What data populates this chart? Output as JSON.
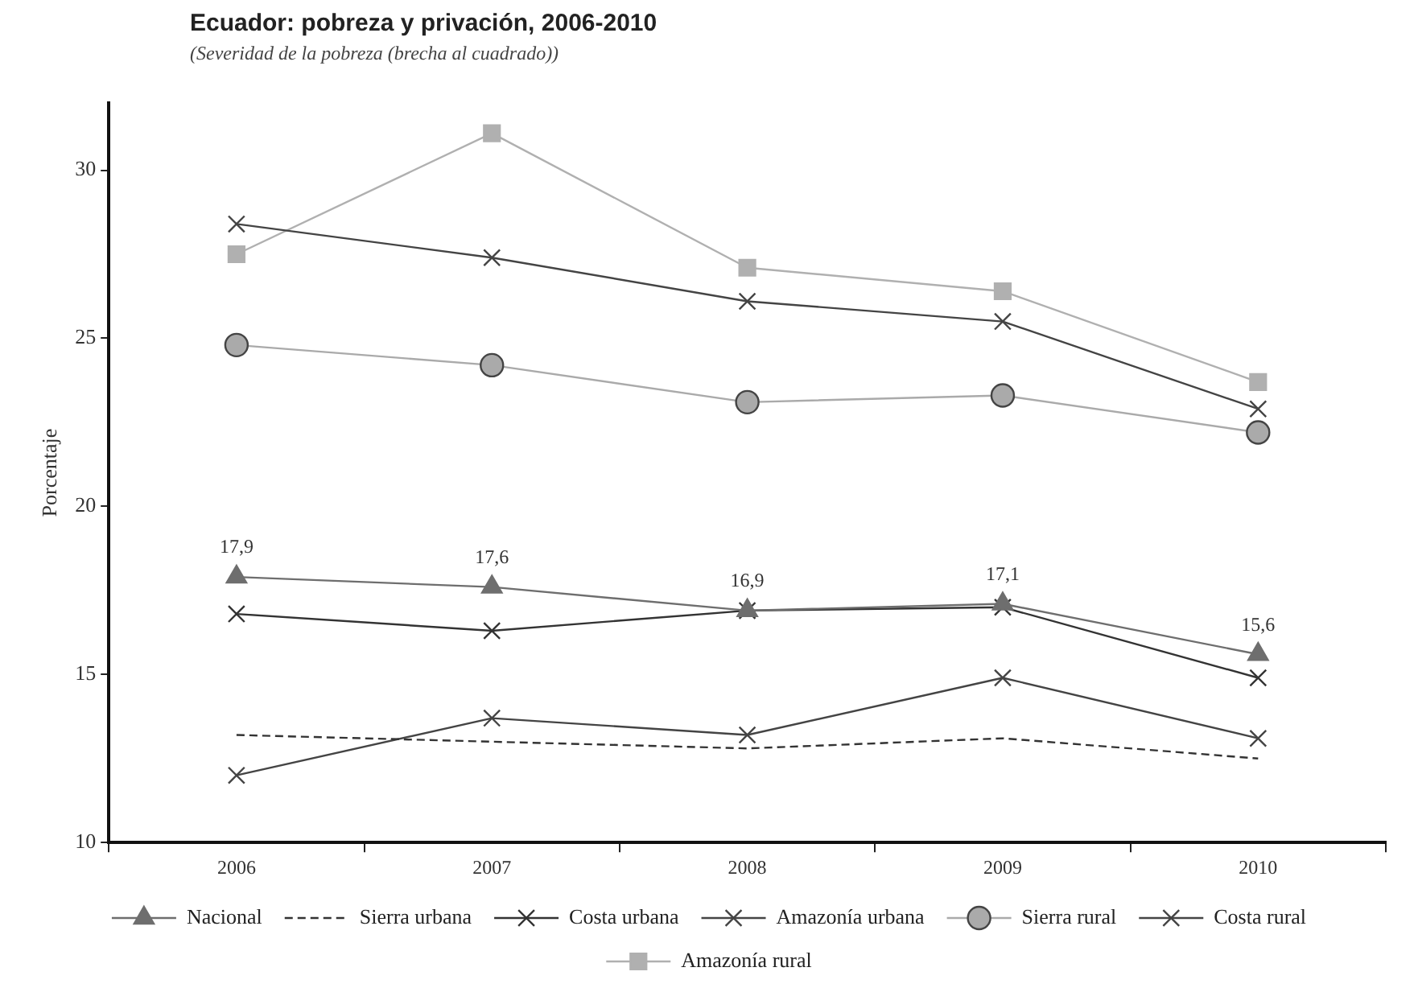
{
  "chart_data": {
    "type": "line",
    "title": "Ecuador: pobreza y privación, 2006-2010",
    "subtitle": "(Severidad de la pobreza (brecha al cuadrado))",
    "ylabel": "Porcentaje",
    "categories": [
      "2006",
      "2007",
      "2008",
      "2009",
      "2010"
    ],
    "ylim": [
      10,
      32
    ],
    "yticks": [
      10,
      15,
      20,
      25,
      30
    ],
    "grid": false,
    "legend": "bottom",
    "series": [
      {
        "name": "Nacional",
        "color": "#6e6e6e",
        "marker": "triangle",
        "values": [
          17.9,
          17.6,
          16.9,
          17.1,
          15.6
        ],
        "value_labels": [
          "17,9",
          "17,6",
          "16,9",
          "17,1",
          "15,6"
        ]
      },
      {
        "name": "Sierra urbana",
        "color": "#333333",
        "marker": "none",
        "line_style": "dashed",
        "values": [
          13.2,
          13.0,
          12.8,
          13.1,
          12.5
        ]
      },
      {
        "name": "Costa urbana",
        "color": "#333333",
        "marker": "cross",
        "values": [
          16.8,
          16.3,
          16.9,
          17.0,
          14.9
        ]
      },
      {
        "name": "Amazonía urbana",
        "color": "#444444",
        "marker": "cross",
        "values": [
          12.0,
          13.7,
          13.2,
          14.9,
          13.1
        ]
      },
      {
        "name": "Sierra rural",
        "color": "#aaaaaa",
        "marker": "circle",
        "values": [
          24.8,
          24.2,
          23.1,
          23.3,
          22.2
        ]
      },
      {
        "name": "Costa rural",
        "color": "#444444",
        "marker": "cross",
        "values": [
          28.4,
          27.4,
          26.1,
          25.5,
          22.9
        ]
      },
      {
        "name": "Amazonía rural",
        "color": "#b0b0b0",
        "marker": "square",
        "values": [
          27.5,
          31.1,
          27.1,
          26.4,
          23.7
        ]
      }
    ]
  }
}
